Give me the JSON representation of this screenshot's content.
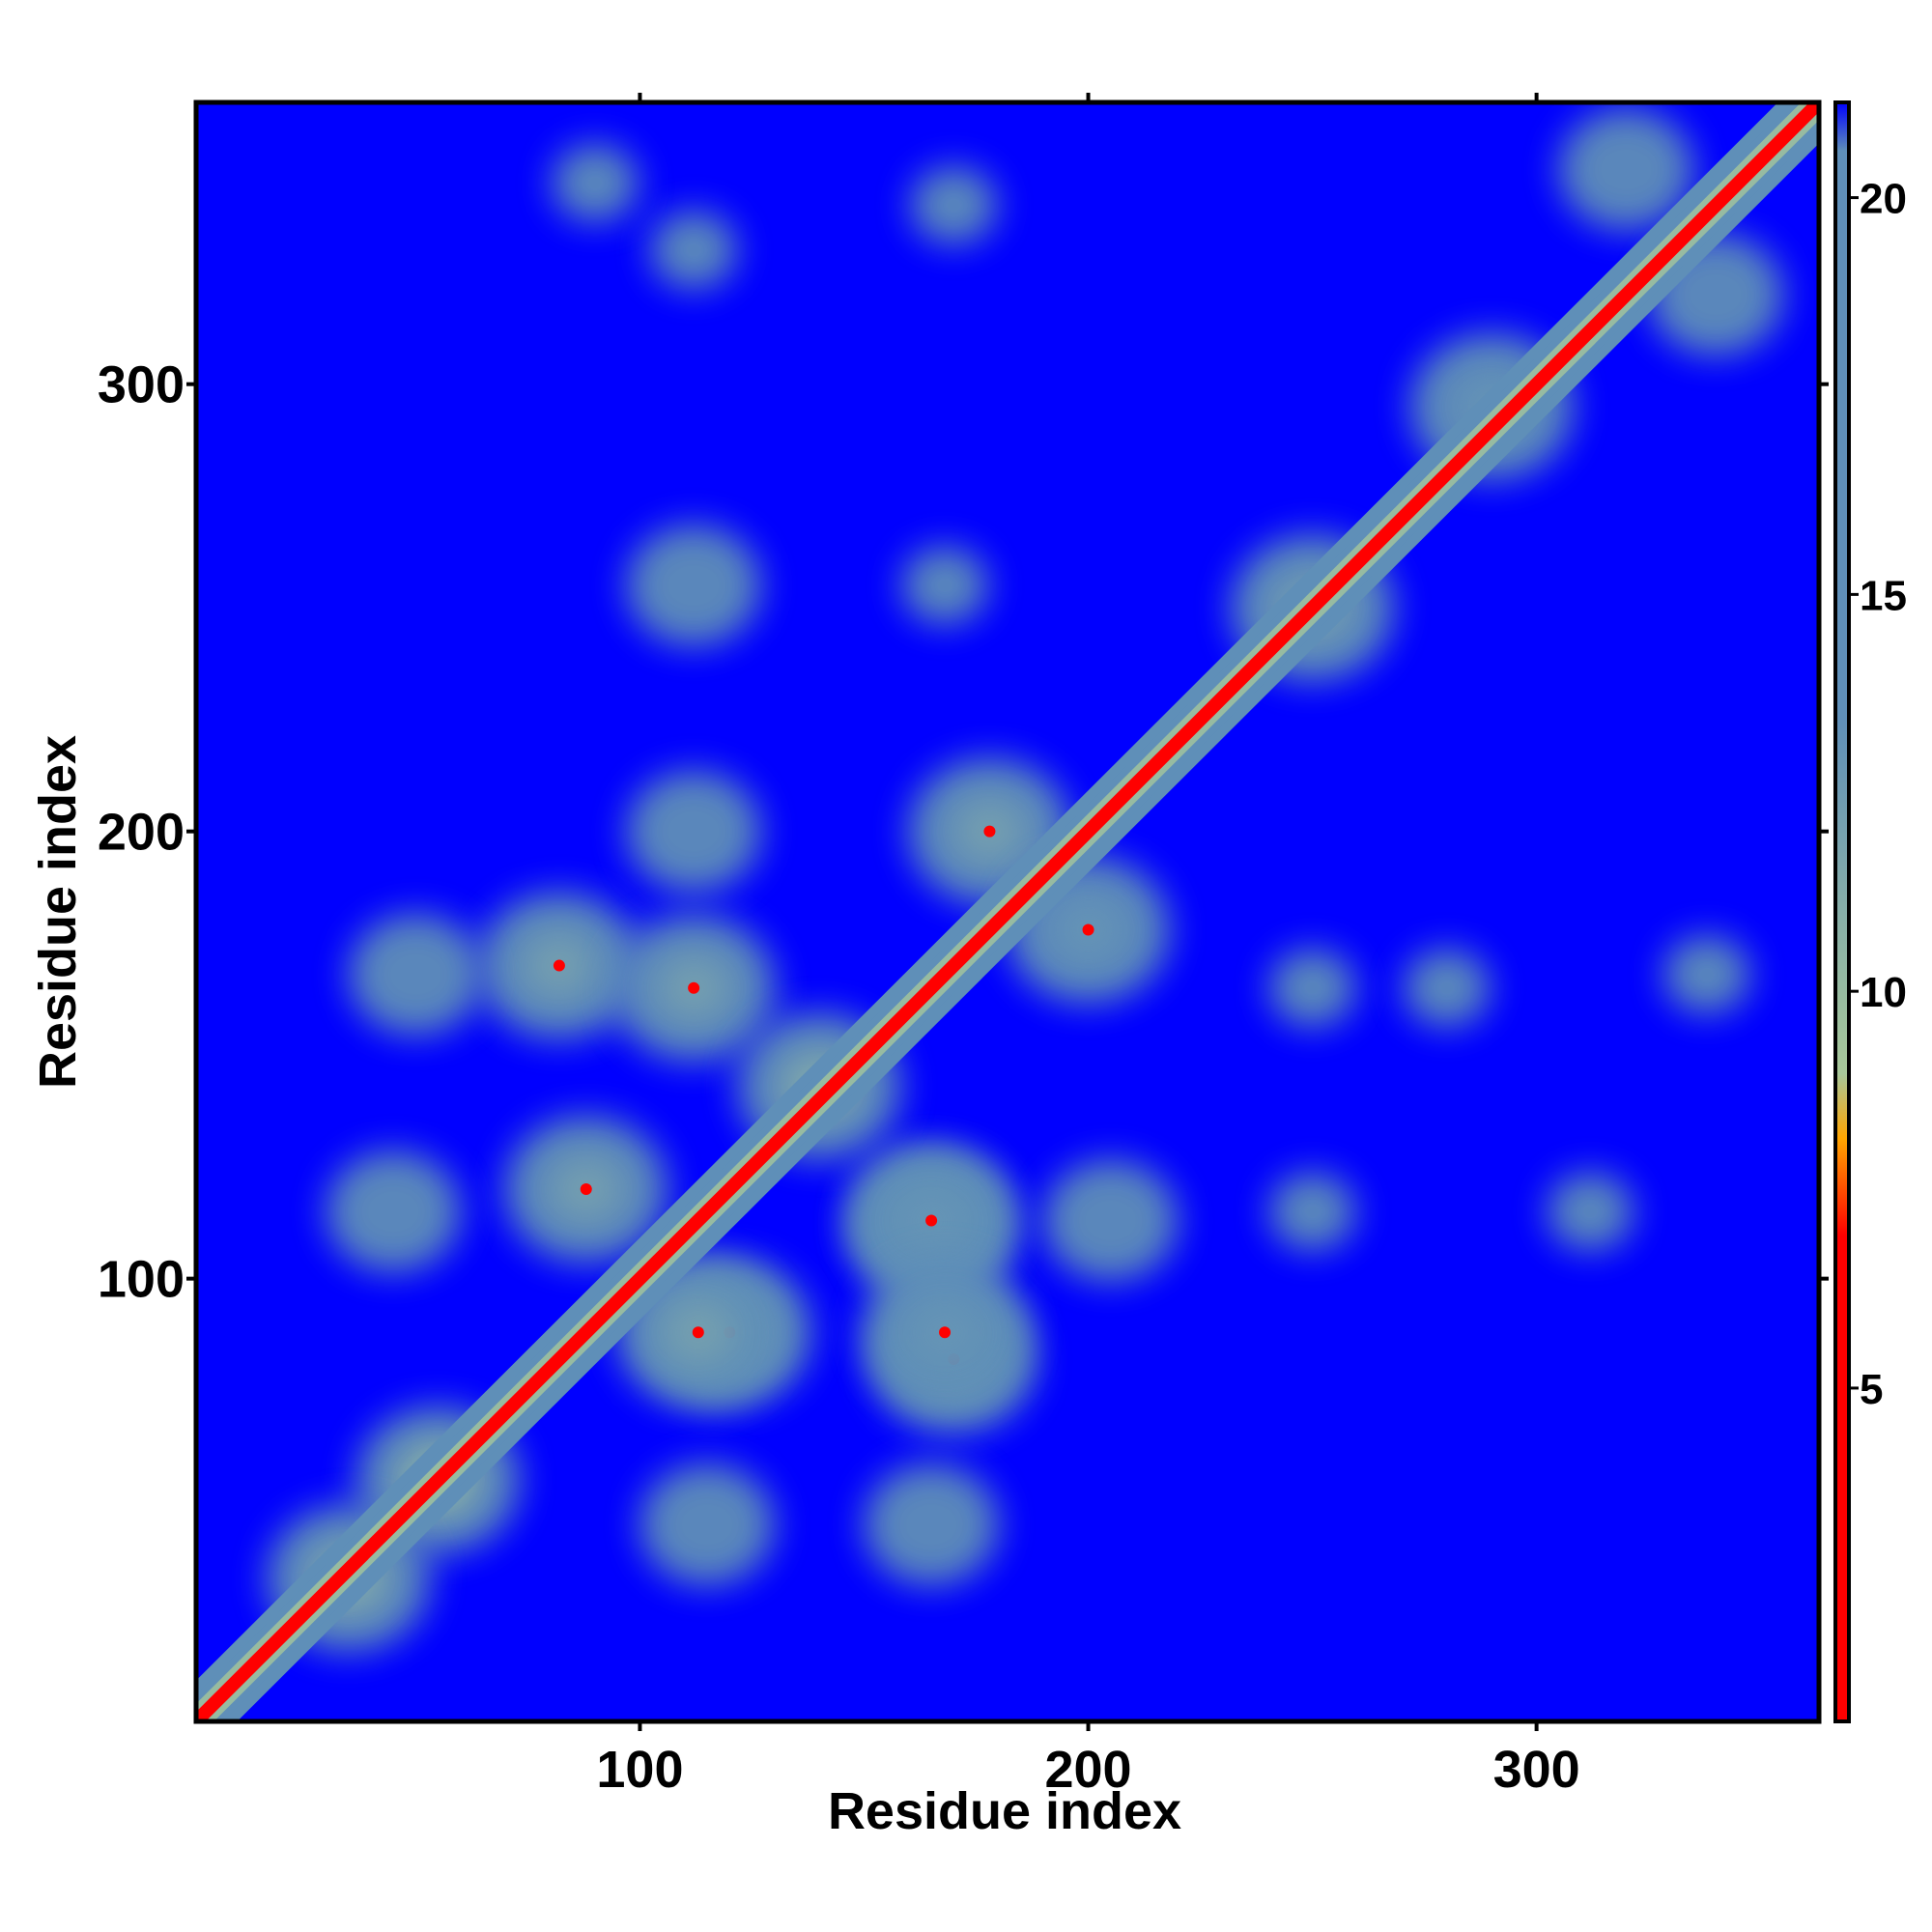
{
  "chart_data": {
    "type": "heatmap",
    "title": "",
    "xlabel": "Residue index",
    "ylabel": "Residue index",
    "xlim": [
      1,
      363
    ],
    "ylim": [
      1,
      363
    ],
    "x_ticks": [
      100,
      200,
      300
    ],
    "y_ticks": [
      100,
      200,
      300
    ],
    "x_tick_labels": [
      "100",
      "200",
      "300"
    ],
    "y_tick_labels": [
      "100",
      "200",
      "300"
    ],
    "colorbar": {
      "range": [
        0.8,
        21.2
      ],
      "ticks": [
        5,
        10,
        15,
        20
      ],
      "tick_labels": [
        "5",
        "10",
        "15",
        "20"
      ],
      "colors": {
        "low": "#ff0000",
        "mid_low": "#ffa500",
        "mid": "#a8c89a",
        "high": "#5f8fb8",
        "max": "#0000ff"
      }
    },
    "background_value": 21,
    "diagonal": {
      "core_value": 2,
      "band_value": 10,
      "halo_value": 18
    },
    "contact_patches": [
      {
        "x": 82,
        "y": 170,
        "value": 12
      },
      {
        "x": 170,
        "y": 82,
        "value": 12
      },
      {
        "x": 112,
        "y": 165,
        "value": 12
      },
      {
        "x": 165,
        "y": 112,
        "value": 12
      },
      {
        "x": 88,
        "y": 120,
        "value": 12
      },
      {
        "x": 120,
        "y": 88,
        "value": 12
      },
      {
        "x": 113,
        "y": 88,
        "value": 12
      },
      {
        "x": 165,
        "y": 113,
        "value": 13
      },
      {
        "x": 168,
        "y": 88,
        "value": 13
      },
      {
        "x": 178,
        "y": 200,
        "value": 12
      },
      {
        "x": 200,
        "y": 178,
        "value": 13
      },
      {
        "x": 45,
        "y": 115,
        "value": 17
      },
      {
        "x": 115,
        "y": 45,
        "value": 17
      },
      {
        "x": 50,
        "y": 168,
        "value": 17
      },
      {
        "x": 112,
        "y": 200,
        "value": 16
      },
      {
        "x": 112,
        "y": 255,
        "value": 17
      },
      {
        "x": 168,
        "y": 255,
        "value": 18
      },
      {
        "x": 165,
        "y": 45,
        "value": 17
      },
      {
        "x": 205,
        "y": 113,
        "value": 17
      },
      {
        "x": 250,
        "y": 165,
        "value": 18
      },
      {
        "x": 250,
        "y": 115,
        "value": 18
      },
      {
        "x": 280,
        "y": 165,
        "value": 19
      },
      {
        "x": 312,
        "y": 115,
        "value": 19
      },
      {
        "x": 338,
        "y": 168,
        "value": 19
      },
      {
        "x": 112,
        "y": 330,
        "value": 19
      },
      {
        "x": 170,
        "y": 340,
        "value": 19
      },
      {
        "x": 90,
        "y": 345,
        "value": 20
      },
      {
        "x": 320,
        "y": 348,
        "value": 17
      },
      {
        "x": 340,
        "y": 320,
        "value": 17
      },
      {
        "x": 290,
        "y": 295,
        "value": 13
      },
      {
        "x": 250,
        "y": 250,
        "value": 12
      },
      {
        "x": 55,
        "y": 55,
        "value": 10
      },
      {
        "x": 35,
        "y": 33,
        "value": 11
      },
      {
        "x": 140,
        "y": 143,
        "value": 11
      }
    ]
  }
}
